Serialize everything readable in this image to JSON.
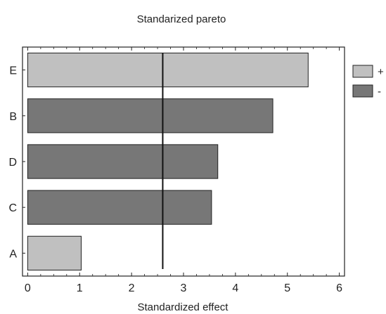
{
  "chart_data": {
    "type": "bar",
    "orientation": "horizontal",
    "title": "Standarized pareto",
    "xlabel": "Standardized effect",
    "ylabel": "",
    "categories": [
      "E",
      "B",
      "D",
      "C",
      "A"
    ],
    "values": [
      5.4,
      4.72,
      3.66,
      3.54,
      1.03
    ],
    "signs": [
      "+",
      "-",
      "-",
      "-",
      "+"
    ],
    "xlim": [
      -0.1,
      6.1
    ],
    "x_ticks": [
      0,
      1,
      2,
      3,
      4,
      5,
      6
    ],
    "reference_line": 2.6,
    "grid": false,
    "legend": {
      "position": "right",
      "entries": [
        {
          "label": "+",
          "color": "#c0c0c0"
        },
        {
          "label": "-",
          "color": "#777777"
        }
      ]
    },
    "colors": {
      "positive": "#c0c0c0",
      "negative": "#777777",
      "edge": "#222222",
      "reference": "#111111"
    }
  }
}
